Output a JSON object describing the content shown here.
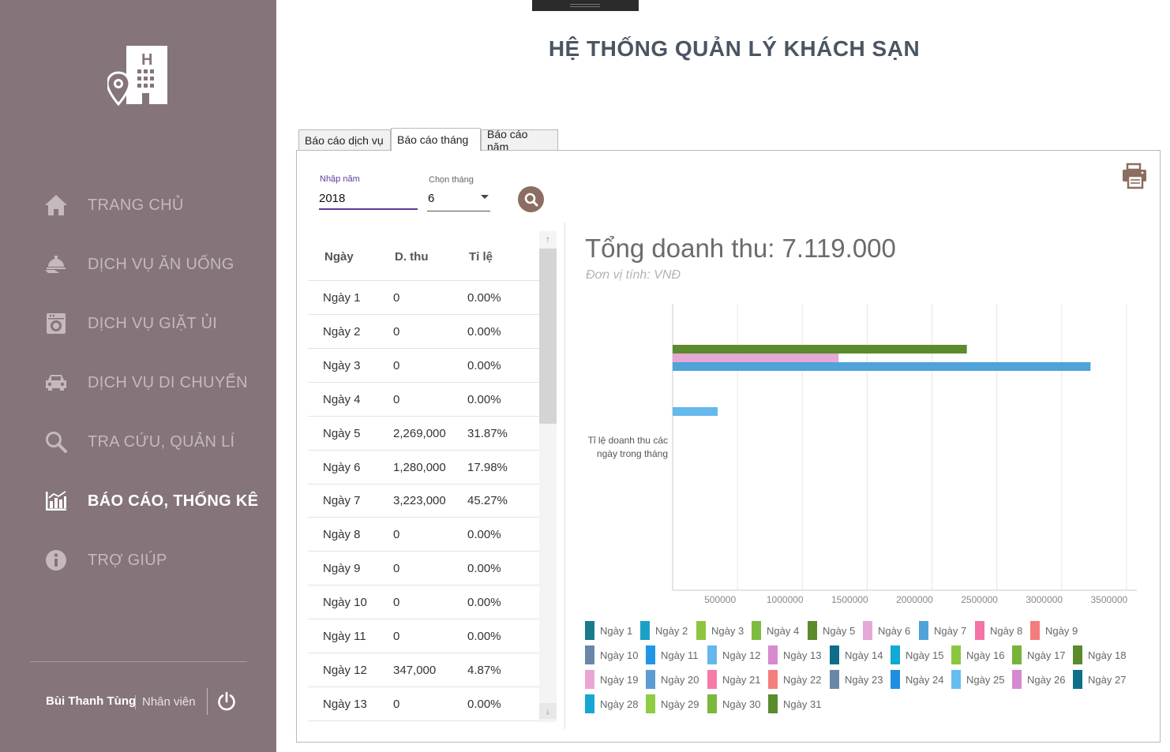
{
  "app": {
    "title": "HỆ THỐNG QUẢN LÝ KHÁCH SẠN"
  },
  "sidebar": {
    "items": [
      {
        "label": "TRANG CHỦ",
        "icon": "home-icon",
        "active": false
      },
      {
        "label": "DỊCH VỤ ĂN UỐNG",
        "icon": "food-service-icon",
        "active": false
      },
      {
        "label": "DỊCH VỤ GIẶT ỦI",
        "icon": "laundry-icon",
        "active": false
      },
      {
        "label": "DỊCH VỤ DI CHUYỂN",
        "icon": "car-icon",
        "active": false
      },
      {
        "label": "TRA CỨU, QUẢN LÍ",
        "icon": "search-icon",
        "active": false
      },
      {
        "label": "BÁO CÁO, THỐNG KÊ",
        "icon": "report-chart-icon",
        "active": true
      },
      {
        "label": "TRỢ GIÚP",
        "icon": "info-icon",
        "active": false
      }
    ],
    "user": {
      "name": "Bùi Thanh Tùng",
      "role": "Nhân viên"
    }
  },
  "tabs": [
    {
      "label": "Báo cáo dịch vụ",
      "active": false
    },
    {
      "label": "Báo cáo tháng",
      "active": true
    },
    {
      "label": "Báo cáo năm",
      "active": false
    }
  ],
  "filters": {
    "year_label": "Nhập năm",
    "year_value": "2018",
    "month_label": "Chọn tháng",
    "month_value": "6"
  },
  "table": {
    "headers": {
      "day": "Ngày",
      "revenue": "D. thu",
      "ratio": "Tỉ lệ"
    },
    "rows": [
      {
        "day": "Ngày 1",
        "revenue": "0",
        "ratio": "0.00%"
      },
      {
        "day": "Ngày 2",
        "revenue": "0",
        "ratio": "0.00%"
      },
      {
        "day": "Ngày 3",
        "revenue": "0",
        "ratio": "0.00%"
      },
      {
        "day": "Ngày 4",
        "revenue": "0",
        "ratio": "0.00%"
      },
      {
        "day": "Ngày 5",
        "revenue": "2,269,000",
        "ratio": "31.87%"
      },
      {
        "day": "Ngày 6",
        "revenue": "1,280,000",
        "ratio": "17.98%"
      },
      {
        "day": "Ngày 7",
        "revenue": "3,223,000",
        "ratio": "45.27%"
      },
      {
        "day": "Ngày 8",
        "revenue": "0",
        "ratio": "0.00%"
      },
      {
        "day": "Ngày 9",
        "revenue": "0",
        "ratio": "0.00%"
      },
      {
        "day": "Ngày 10",
        "revenue": "0",
        "ratio": "0.00%"
      },
      {
        "day": "Ngày 11",
        "revenue": "0",
        "ratio": "0.00%"
      },
      {
        "day": "Ngày 12",
        "revenue": "347,000",
        "ratio": "4.87%"
      },
      {
        "day": "Ngày 13",
        "revenue": "0",
        "ratio": "0.00%"
      }
    ]
  },
  "summary": {
    "title": "Tổng doanh thu: 7.119.000",
    "subtitle": "Đơn vị tính: VNĐ"
  },
  "chart_data": {
    "type": "bar",
    "orientation": "horizontal",
    "ylabel": "Tỉ lệ doanh thu các ngày trong tháng",
    "xticks": [
      "500000",
      "1000000",
      "1500000",
      "2000000",
      "2500000",
      "3000000",
      "3500000"
    ],
    "xlim": [
      0,
      3580000
    ],
    "grid": true,
    "legend_position": "bottom",
    "series": [
      {
        "name": "Ngày 1",
        "value": 0,
        "color": "#1a7a8c"
      },
      {
        "name": "Ngày 2",
        "value": 0,
        "color": "#1ba1c8"
      },
      {
        "name": "Ngày 3",
        "value": 0,
        "color": "#8cc63f"
      },
      {
        "name": "Ngày 4",
        "value": 0,
        "color": "#7dbb42"
      },
      {
        "name": "Ngày 5",
        "value": 2269000,
        "color": "#5c8b2e"
      },
      {
        "name": "Ngày 6",
        "value": 1280000,
        "color": "#e6a8d4"
      },
      {
        "name": "Ngày 7",
        "value": 3223000,
        "color": "#4fa3d8"
      },
      {
        "name": "Ngày 8",
        "value": 0,
        "color": "#f472a8"
      },
      {
        "name": "Ngày 9",
        "value": 0,
        "color": "#f47c7c"
      },
      {
        "name": "Ngày 10",
        "value": 0,
        "color": "#6a86a8"
      },
      {
        "name": "Ngày 11",
        "value": 0,
        "color": "#2196e8"
      },
      {
        "name": "Ngày 12",
        "value": 347000,
        "color": "#64b8ec"
      },
      {
        "name": "Ngày 13",
        "value": 0,
        "color": "#d68ad0"
      },
      {
        "name": "Ngày 14",
        "value": 0,
        "color": "#0e6e8a"
      },
      {
        "name": "Ngày 15",
        "value": 0,
        "color": "#12a9d4"
      },
      {
        "name": "Ngày 16",
        "value": 0,
        "color": "#8cc63f"
      },
      {
        "name": "Ngày 17",
        "value": 0,
        "color": "#78b33a"
      },
      {
        "name": "Ngày 18",
        "value": 0,
        "color": "#5a8a2a"
      },
      {
        "name": "Ngày 19",
        "value": 0,
        "color": "#e9a6d4"
      },
      {
        "name": "Ngày 20",
        "value": 0,
        "color": "#5c9cd0"
      },
      {
        "name": "Ngày 21",
        "value": 0,
        "color": "#f67ba9"
      },
      {
        "name": "Ngày 22",
        "value": 0,
        "color": "#f47e7e"
      },
      {
        "name": "Ngày 23",
        "value": 0,
        "color": "#6b87a8"
      },
      {
        "name": "Ngày 24",
        "value": 0,
        "color": "#1e8fe0"
      },
      {
        "name": "Ngày 25",
        "value": 0,
        "color": "#66bdf0"
      },
      {
        "name": "Ngày 26",
        "value": 0,
        "color": "#d58ad0"
      },
      {
        "name": "Ngày 27",
        "value": 0,
        "color": "#0f6f8a"
      },
      {
        "name": "Ngày 28",
        "value": 0,
        "color": "#14a8d2"
      },
      {
        "name": "Ngày 29",
        "value": 0,
        "color": "#90cc44"
      },
      {
        "name": "Ngày 30",
        "value": 0,
        "color": "#7cb83d"
      },
      {
        "name": "Ngày 31",
        "value": 0,
        "color": "#5c8b2e"
      }
    ]
  }
}
